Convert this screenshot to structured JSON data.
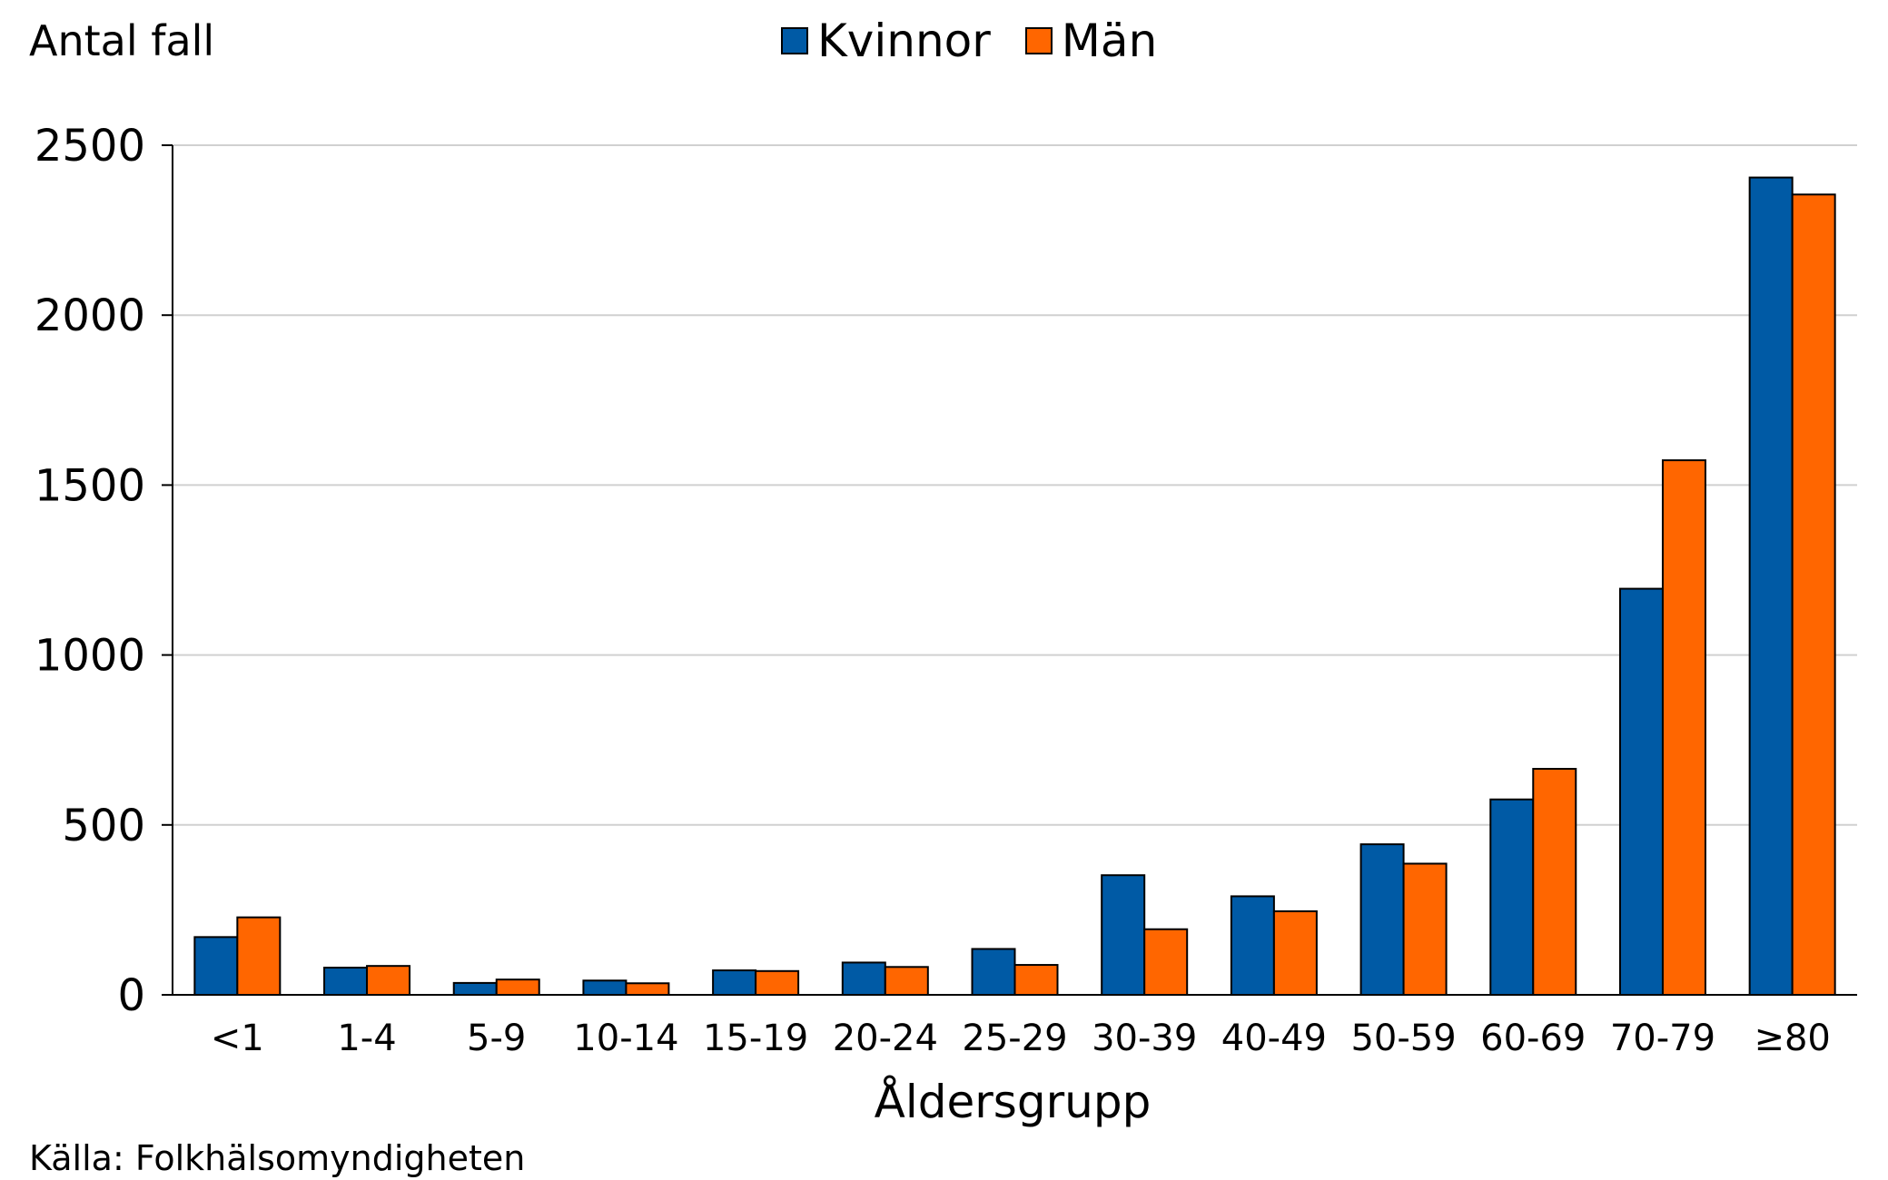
{
  "chart_data": {
    "type": "bar",
    "ylabel": "Antal fall",
    "xlabel": "Åldersgrupp",
    "source": "Källa: Folkhälsomyndigheten",
    "categories": [
      "<1",
      "1-4",
      "5-9",
      "10-14",
      "15-19",
      "20-24",
      "25-29",
      "30-39",
      "40-49",
      "50-59",
      "60-69",
      "70-79",
      "≥80"
    ],
    "series": [
      {
        "name": "Kvinnor",
        "color": "#005AA5",
        "values": [
          170,
          80,
          35,
          42,
          72,
          95,
          135,
          352,
          290,
          443,
          575,
          1195,
          2405
        ]
      },
      {
        "name": "Män",
        "color": "#FF6600",
        "values": [
          228,
          85,
          45,
          34,
          70,
          82,
          88,
          193,
          246,
          386,
          665,
          1573,
          2355
        ]
      }
    ],
    "ylim": [
      0,
      2500
    ],
    "yticks": [
      0,
      500,
      1000,
      1500,
      2000,
      2500
    ],
    "grid": true,
    "legend_position": "top-center"
  }
}
